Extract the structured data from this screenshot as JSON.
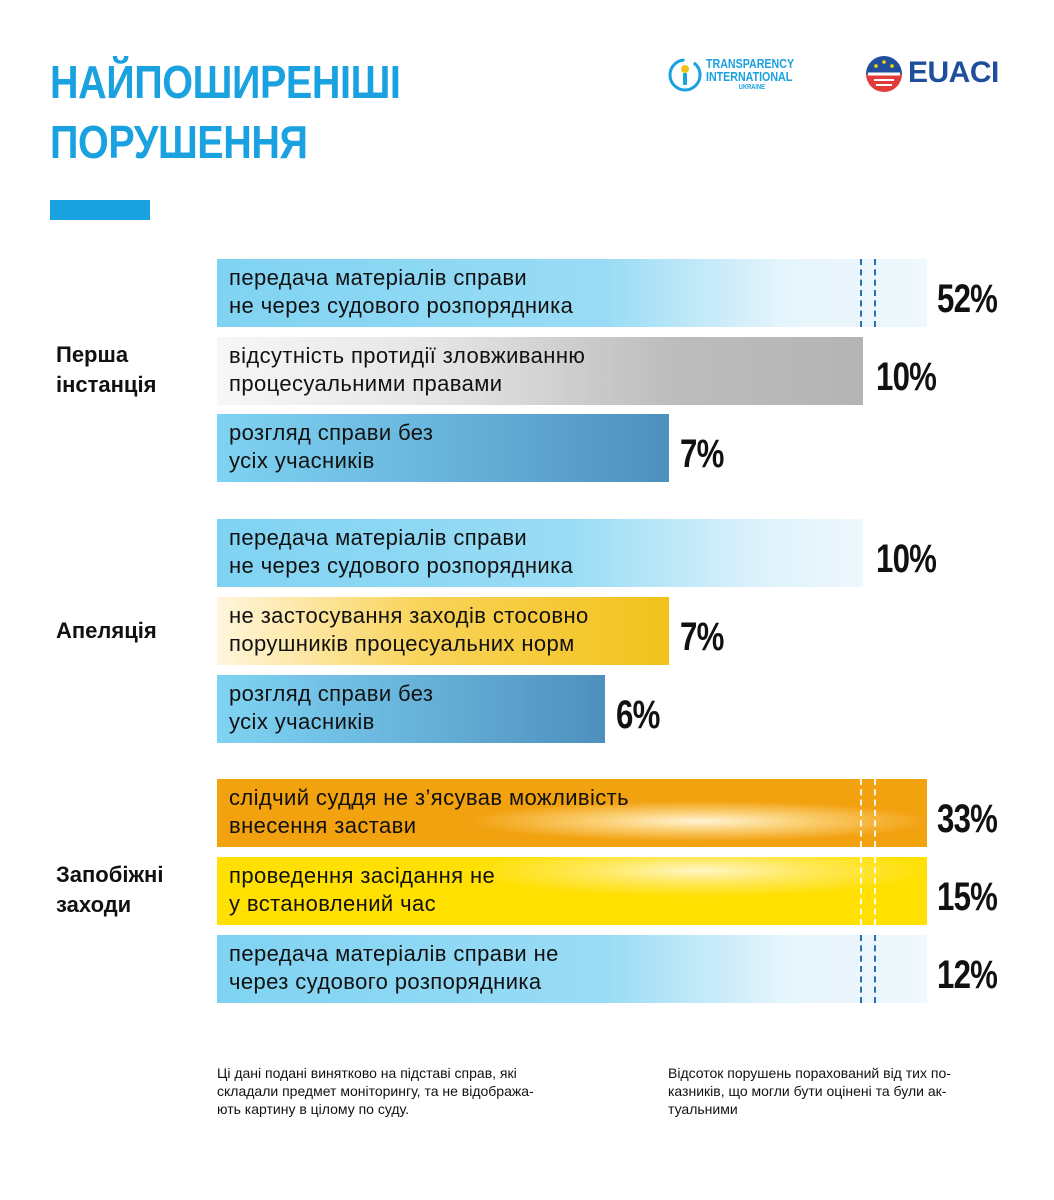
{
  "title": {
    "line1": "НАЙПОШИРЕНІШІ",
    "line2": "ПОРУШЕННЯ"
  },
  "logos": {
    "ti": {
      "line1": "TRANSPARENCY",
      "line2": "INTERNATIONAL",
      "line3": "UKRAINE"
    },
    "euaci": "EUACI"
  },
  "colors": {
    "title_blue": "#1aa1df",
    "light_blue": "#7fd3f2",
    "mid_blue": "#4e90bd",
    "gray": "#bdbdbd",
    "yellow_orange": "#f2c21a",
    "orange": "#f2a10f",
    "yellow": "#ffe000"
  },
  "chart_data": {
    "type": "bar",
    "orientation": "horizontal",
    "title": "НАЙПОШИРЕНІШІ ПОРУШЕННЯ",
    "unit": "%",
    "groups": [
      {
        "name": [
          "Перша",
          "інстанція"
        ],
        "items": [
          {
            "label": [
              "передача матеріалів справи",
              "не через судового розпорядника"
            ],
            "value": 52,
            "display": "52%"
          },
          {
            "label": [
              "відсутність протидії зловживанню",
              "процесуальними правами"
            ],
            "value": 10,
            "display": "10%"
          },
          {
            "label": [
              "розгляд справи без",
              "усіх учасників"
            ],
            "value": 7,
            "display": "7%"
          }
        ]
      },
      {
        "name": [
          "Апеляція"
        ],
        "items": [
          {
            "label": [
              "передача матеріалів справи",
              "не через судового розпорядника"
            ],
            "value": 10,
            "display": "10%"
          },
          {
            "label": [
              "не застосування заходів стосовно",
              "порушників процесуальних норм"
            ],
            "value": 7,
            "display": "7%"
          },
          {
            "label": [
              "розгляд справи без",
              "усіх учасників"
            ],
            "value": 6,
            "display": "6%"
          }
        ]
      },
      {
        "name": [
          "Запобіжні",
          "заходи"
        ],
        "items": [
          {
            "label": [
              "слідчий суддя не з’ясував можливість",
              "внесення застави"
            ],
            "value": 33,
            "display": "33%"
          },
          {
            "label": [
              "проведення засідання не",
              "у встановлений час"
            ],
            "value": 15,
            "display": "15%"
          },
          {
            "label": [
              "передача матеріалів справи не",
              "через судового розпорядника"
            ],
            "value": 12,
            "display": "12%"
          }
        ]
      }
    ]
  },
  "notes": {
    "left": [
      "Ці дані подані винятково на підставі справ, які",
      "складали предмет моніторингу, та не відобража-",
      "ють картину в цілому по суду."
    ],
    "right": [
      "Відсоток порушень порахований від тих по-",
      "казників, що могли бути оцінені та були ак-",
      "туальними"
    ]
  }
}
